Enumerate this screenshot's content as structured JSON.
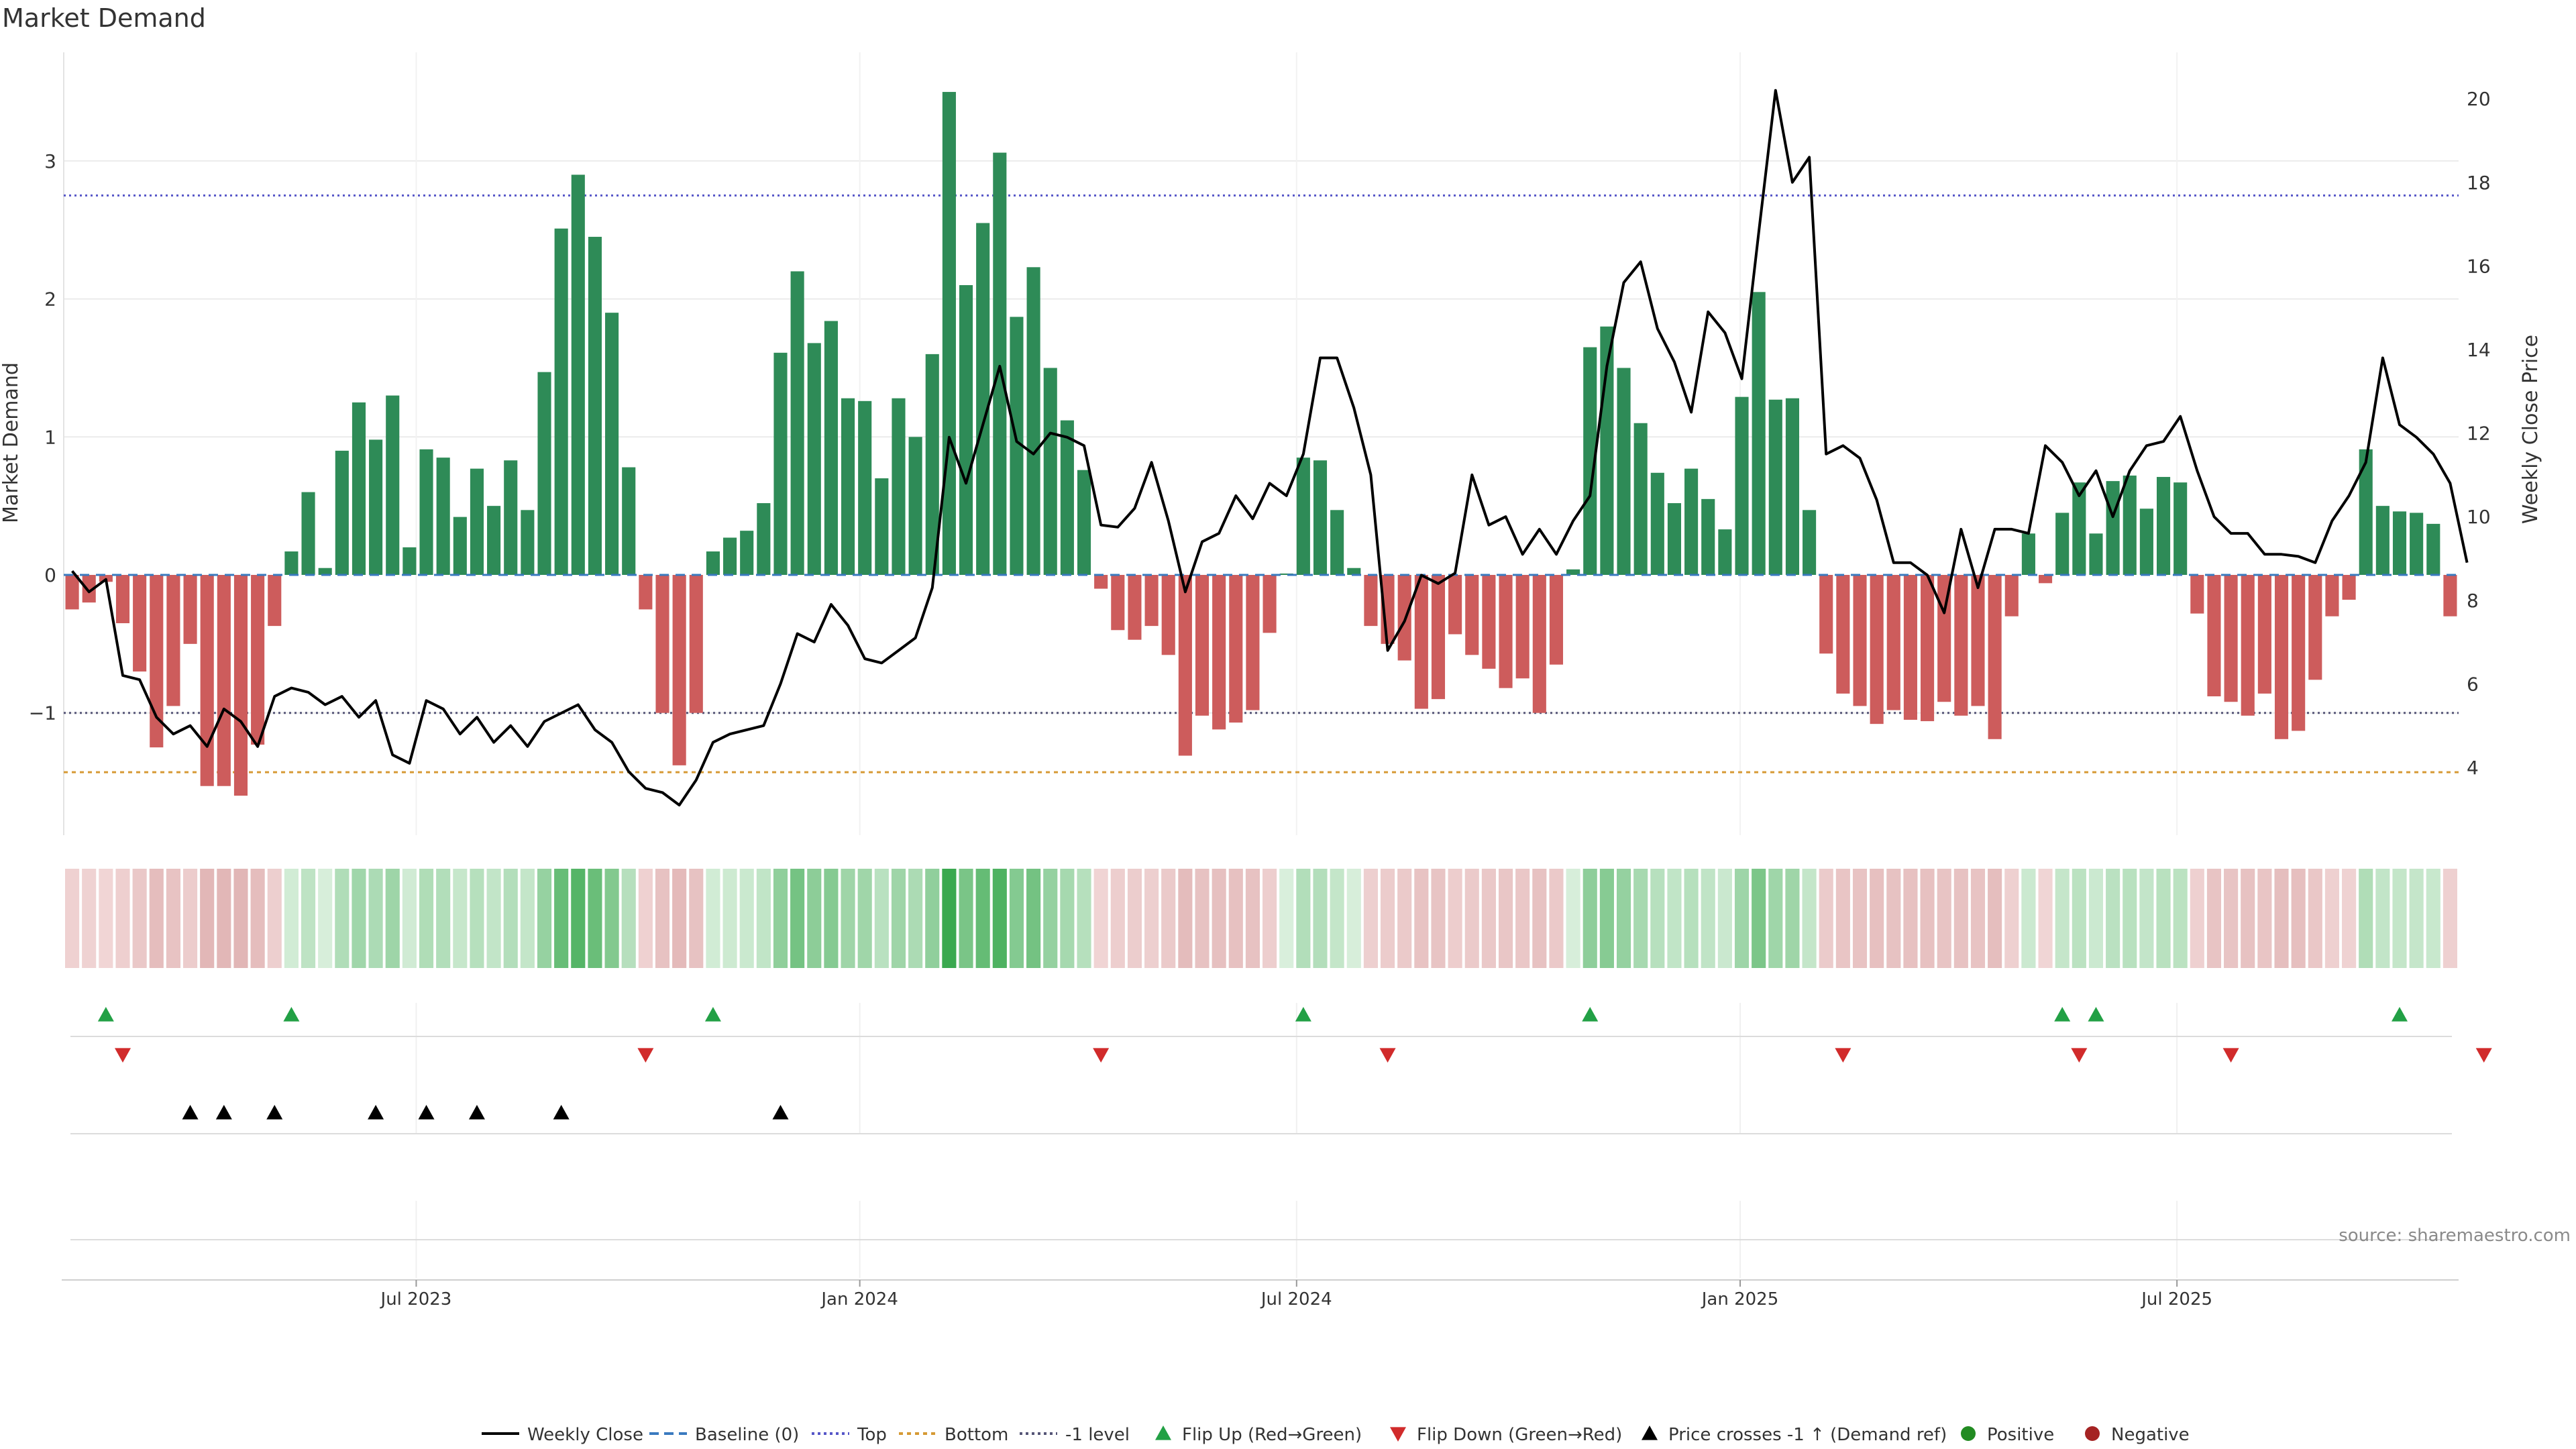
{
  "chart_data": {
    "type": "bar",
    "title": "Market Demand",
    "ylabel": "Market Demand",
    "y2label": "Weekly Close Price",
    "ylim": [
      -1.85,
      3.8
    ],
    "y2lim": [
      2.5,
      21.3
    ],
    "yticks": [
      "3",
      "2",
      "1",
      "0",
      "−1"
    ],
    "y2ticks": [
      "20",
      "18",
      "16",
      "14",
      "12",
      "10",
      "8",
      "6",
      "4"
    ],
    "xticks": [
      "Jul 2023",
      "Jan 2024",
      "Jul 2024",
      "Jan 2025",
      "Jul 2025"
    ],
    "xtick_weeks": [
      20.4,
      46.7,
      72.6,
      98.9,
      124.8
    ],
    "reference_lines": {
      "top": 2.75,
      "bottom": -1.43,
      "minus_one": -1.0
    },
    "demand": [
      -0.25,
      -0.2,
      -0.05,
      -0.35,
      -0.7,
      -1.25,
      -0.95,
      -0.5,
      -1.53,
      -1.53,
      -1.6,
      -1.23,
      -0.37,
      0.17,
      0.6,
      0.05,
      0.9,
      1.25,
      0.98,
      1.3,
      0.2,
      0.91,
      0.85,
      0.42,
      0.77,
      0.5,
      0.83,
      0.47,
      1.47,
      2.51,
      2.9,
      2.45,
      1.9,
      0.78,
      -0.25,
      -1.0,
      -1.38,
      -1.0,
      0.17,
      0.27,
      0.32,
      0.52,
      1.61,
      2.2,
      1.68,
      1.84,
      1.28,
      1.26,
      0.7,
      1.28,
      1.0,
      1.6,
      3.5,
      2.1,
      2.55,
      3.06,
      1.87,
      2.23,
      1.5,
      1.12,
      0.76,
      -0.1,
      -0.4,
      -0.47,
      -0.37,
      -0.58,
      -1.31,
      -1.02,
      -1.12,
      -1.07,
      -0.98,
      -0.42,
      0.01,
      0.85,
      0.83,
      0.47,
      0.05,
      -0.37,
      -0.5,
      -0.62,
      -0.97,
      -0.9,
      -0.43,
      -0.58,
      -0.68,
      -0.82,
      -0.75,
      -1.0,
      -0.65,
      0.04,
      1.65,
      1.8,
      1.5,
      1.1,
      0.74,
      0.52,
      0.77,
      0.55,
      0.33,
      1.29,
      2.05,
      1.27,
      1.28,
      0.47,
      -0.57,
      -0.86,
      -0.95,
      -1.08,
      -0.98,
      -1.05,
      -1.06,
      -0.92,
      -1.02,
      -0.95,
      -1.19,
      -0.3,
      0.3,
      -0.06,
      0.45,
      0.67,
      0.3,
      0.68,
      0.72,
      0.48,
      0.71,
      0.67,
      -0.28,
      -0.88,
      -0.92,
      -1.02,
      -0.86,
      -1.19,
      -1.13,
      -0.76,
      -0.3,
      -0.18,
      0.91,
      0.5,
      0.46,
      0.45,
      0.37,
      -0.3
    ],
    "price": [
      8.7,
      8.2,
      8.5,
      6.2,
      6.1,
      5.2,
      4.8,
      5.0,
      4.5,
      5.4,
      5.1,
      4.5,
      5.7,
      5.9,
      5.8,
      5.5,
      5.7,
      5.2,
      5.6,
      4.3,
      4.1,
      5.6,
      5.4,
      4.8,
      5.2,
      4.6,
      5.0,
      4.5,
      5.1,
      5.3,
      5.5,
      4.9,
      4.6,
      3.9,
      3.5,
      3.4,
      3.1,
      3.7,
      4.6,
      4.8,
      4.9,
      5.0,
      6.0,
      7.2,
      7.0,
      7.9,
      7.4,
      6.6,
      6.5,
      6.8,
      7.1,
      8.3,
      11.9,
      10.8,
      12.2,
      13.6,
      11.8,
      11.5,
      12.0,
      11.9,
      11.7,
      9.8,
      9.75,
      10.2,
      11.3,
      9.9,
      8.2,
      9.4,
      9.6,
      10.5,
      9.95,
      10.8,
      10.5,
      11.5,
      13.8,
      13.8,
      12.6,
      11.0,
      6.8,
      7.5,
      8.6,
      8.4,
      8.65,
      11.0,
      9.8,
      10.0,
      9.1,
      9.7,
      9.1,
      9.9,
      10.5,
      13.6,
      15.6,
      16.1,
      14.5,
      13.7,
      12.5,
      14.9,
      14.4,
      13.3,
      16.8,
      20.2,
      18.0,
      18.6,
      11.5,
      11.7,
      11.4,
      10.4,
      8.9,
      8.9,
      8.6,
      7.7,
      9.7,
      8.3,
      9.7,
      9.7,
      9.6,
      11.7,
      11.3,
      10.5,
      11.1,
      10.0,
      11.1,
      11.7,
      11.8,
      12.4,
      11.1,
      10.0,
      9.6,
      9.6,
      9.1,
      9.1,
      9.05,
      8.9,
      9.9,
      10.5,
      11.3,
      13.8,
      12.2,
      11.9,
      11.5,
      10.8,
      8.9
    ],
    "flip_up_weeks": [
      2,
      13,
      38,
      73,
      90,
      118,
      120,
      138
    ],
    "flip_down_weeks": [
      3,
      34,
      61,
      78,
      105,
      119,
      128,
      143
    ],
    "price_cross_weeks": [
      7,
      9,
      12,
      18,
      21,
      24,
      29,
      42
    ],
    "legend": [
      "Weekly Close",
      "Baseline (0)",
      "Top",
      "Bottom",
      "-1 level",
      "Flip Up (Red→Green)",
      "Flip Down (Green→Red)",
      "Price crosses -1 ↑ (Demand ref)",
      "Positive",
      "Negative"
    ],
    "source_label": "source: sharemaestro.com",
    "colors": {
      "positive": "#2e8b57",
      "negative": "#cd5c5c",
      "price": "#000000",
      "baseline": "#3a7abf",
      "top": "#5656c8",
      "bottom": "#d69a35",
      "minus_one": "#555577",
      "flip_up": "#22a045",
      "flip_down": "#d12b2b",
      "cross": "#000000",
      "legend_positive": "#228b22",
      "legend_negative": "#a52323"
    }
  }
}
